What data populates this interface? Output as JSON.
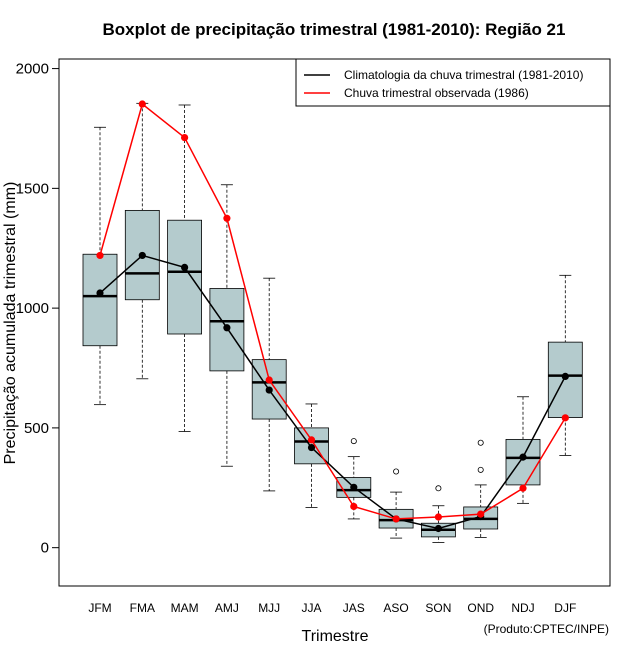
{
  "chart_data": {
    "type": "boxplot",
    "title": "Boxplot de precipitação trimestral (1981-2010): Região 21",
    "xlabel": "Trimestre",
    "ylabel": "Precipitação acumulada trimestral (mm)",
    "credit": "(Produto:CPTEC/INPE)",
    "ylim": [
      -160,
      2040
    ],
    "yticks": [
      0,
      500,
      1000,
      1500,
      2000
    ],
    "categories": [
      "JFM",
      "FMA",
      "MAM",
      "AMJ",
      "MJJ",
      "JJA",
      "JAS",
      "ASO",
      "SON",
      "OND",
      "NDJ",
      "DJF"
    ],
    "boxes": [
      {
        "whisker_low": 597,
        "q1": 843,
        "median": 1050,
        "q3": 1225,
        "whisker_high": 1755,
        "outliers": []
      },
      {
        "whisker_low": 705,
        "q1": 1035,
        "median": 1145,
        "q3": 1408,
        "whisker_high": 1855,
        "outliers": []
      },
      {
        "whisker_low": 485,
        "q1": 892,
        "median": 1152,
        "q3": 1367,
        "whisker_high": 1848,
        "outliers": []
      },
      {
        "whisker_low": 340,
        "q1": 738,
        "median": 945,
        "q3": 1082,
        "whisker_high": 1515,
        "outliers": []
      },
      {
        "whisker_low": 237,
        "q1": 537,
        "median": 690,
        "q3": 785,
        "whisker_high": 1125,
        "outliers": []
      },
      {
        "whisker_low": 168,
        "q1": 350,
        "median": 443,
        "q3": 500,
        "whisker_high": 600,
        "outliers": []
      },
      {
        "whisker_low": 120,
        "q1": 210,
        "median": 240,
        "q3": 293,
        "whisker_high": 380,
        "outliers": [
          445
        ]
      },
      {
        "whisker_low": 40,
        "q1": 82,
        "median": 115,
        "q3": 160,
        "whisker_high": 232,
        "outliers": [
          318
        ]
      },
      {
        "whisker_low": 22,
        "q1": 45,
        "median": 75,
        "q3": 102,
        "whisker_high": 175,
        "outliers": [
          248
        ]
      },
      {
        "whisker_low": 42,
        "q1": 78,
        "median": 120,
        "q3": 170,
        "whisker_high": 262,
        "outliers": [
          325,
          438
        ]
      },
      {
        "whisker_low": 185,
        "q1": 262,
        "median": 375,
        "q3": 452,
        "whisker_high": 630,
        "outliers": []
      },
      {
        "whisker_low": 385,
        "q1": 543,
        "median": 718,
        "q3": 858,
        "whisker_high": 1137,
        "outliers": []
      }
    ],
    "series": [
      {
        "name": "Climatologia da chuva trimestral (1981-2010)",
        "color": "#000000",
        "values": [
          1063,
          1220,
          1170,
          918,
          658,
          418,
          252,
          120,
          80,
          130,
          378,
          715
        ]
      },
      {
        "name": "Chuva trimestral observada (1986)",
        "color": "#ff0000",
        "values": [
          1220,
          1852,
          1712,
          1375,
          700,
          450,
          172,
          120,
          128,
          140,
          248,
          542
        ]
      }
    ],
    "box_fill": "#b4cbcd",
    "legend_position": "top-right"
  }
}
